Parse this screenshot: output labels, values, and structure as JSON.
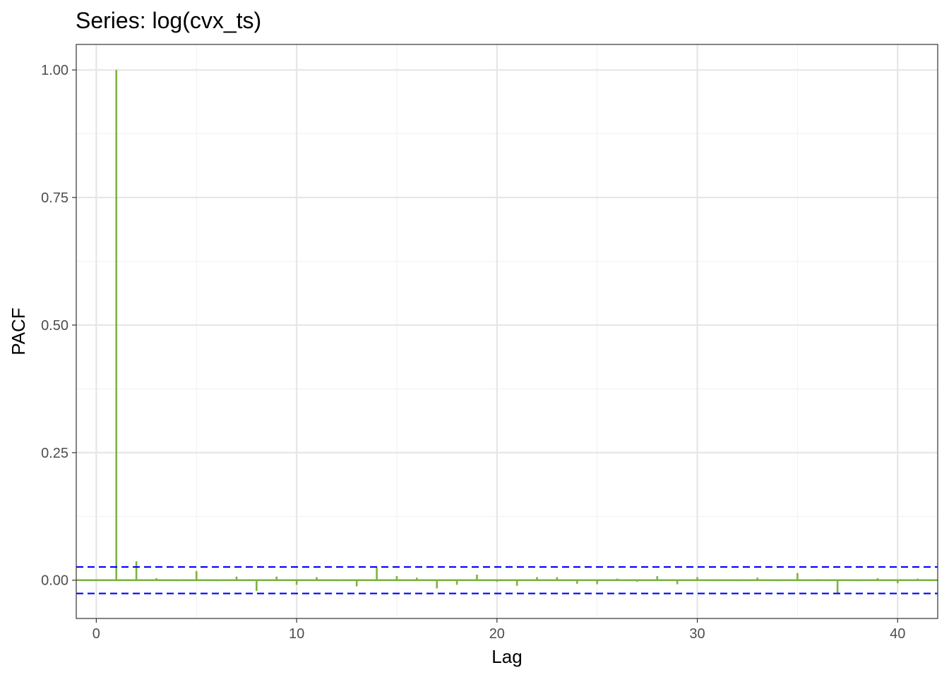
{
  "chart_data": {
    "type": "bar",
    "title": "Series: log(cvx_ts)",
    "xlabel": "Lag",
    "ylabel": "PACF",
    "xlim": [
      -1,
      42
    ],
    "ylim": [
      -0.075,
      1.05
    ],
    "x_ticks": [
      0,
      10,
      20,
      30,
      40
    ],
    "x_tick_labels": [
      "0",
      "10",
      "20",
      "30",
      "40"
    ],
    "y_ticks": [
      0.0,
      0.25,
      0.5,
      0.75,
      1.0
    ],
    "y_tick_labels": [
      "0.00",
      "0.25",
      "0.50",
      "0.75",
      "1.00"
    ],
    "grid": true,
    "confidence_bounds": [
      0.026,
      -0.026
    ],
    "lags": [
      1,
      2,
      3,
      4,
      5,
      6,
      7,
      8,
      9,
      10,
      11,
      12,
      13,
      14,
      15,
      16,
      17,
      18,
      19,
      20,
      21,
      22,
      23,
      24,
      25,
      26,
      27,
      28,
      29,
      30,
      31,
      32,
      33,
      34,
      35,
      36,
      37,
      38,
      39,
      40,
      41
    ],
    "values": [
      1.0,
      0.037,
      0.004,
      -0.002,
      0.018,
      -0.002,
      0.007,
      -0.021,
      0.007,
      -0.009,
      0.006,
      -0.002,
      -0.012,
      0.025,
      0.008,
      0.005,
      -0.016,
      -0.009,
      0.011,
      -0.003,
      -0.011,
      0.006,
      0.006,
      -0.007,
      -0.008,
      0.003,
      -0.003,
      0.008,
      -0.008,
      0.006,
      -0.002,
      -0.002,
      0.005,
      -0.002,
      0.014,
      0.002,
      -0.025,
      -0.002,
      0.004,
      -0.006,
      0.003
    ],
    "colors": {
      "bar": "#7cb342",
      "zero_line": "#7cb342",
      "confidence": "#0000ff",
      "grid_major": "#e6e6e6",
      "grid_minor": "#f0f0f0",
      "panel_border": "#333333"
    }
  }
}
